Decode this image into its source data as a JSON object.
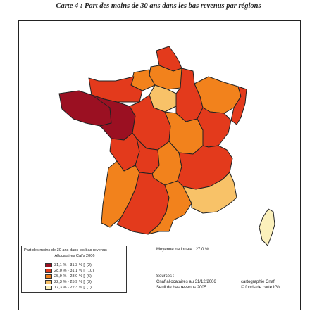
{
  "title": "Carte 4 : Part des moins de 30 ans dans les bas revenus par régions",
  "colors": {
    "c1": "#9b1022",
    "c2": "#e33a1c",
    "c3": "#f2821c",
    "c4": "#f8c268",
    "c5": "#fbf0bb",
    "border": "#222222"
  },
  "legend": {
    "title": "Part des moins de 30 ans dans les bas revenus",
    "subtitle": "Allocataires Caf's 2006",
    "classes": [
      {
        "label": "31,1 % - 31,3 % [  (2)",
        "color": "#9b1022"
      },
      {
        "label": "28,0 % - 31,1 % [  (10)",
        "color": "#e33a1c"
      },
      {
        "label": "25,9 % - 28,0 % [  (6)",
        "color": "#f2821c"
      },
      {
        "label": "22,3 % - 25,9 % [  (3)",
        "color": "#f8c268"
      },
      {
        "label": "17,3 % - 22,3 % [  (1)",
        "color": "#fbf0bb"
      }
    ]
  },
  "moyenne": "Moyenne nationale : 27,0 %",
  "sources": {
    "heading": "Sources :",
    "line1": "Cnaf allocataires au 31/12/2006",
    "line2": "Seuil de bas revenus 2005"
  },
  "credits": {
    "line1": "cartographie Cnaf",
    "line2": "© fonds de carte IGN"
  }
}
